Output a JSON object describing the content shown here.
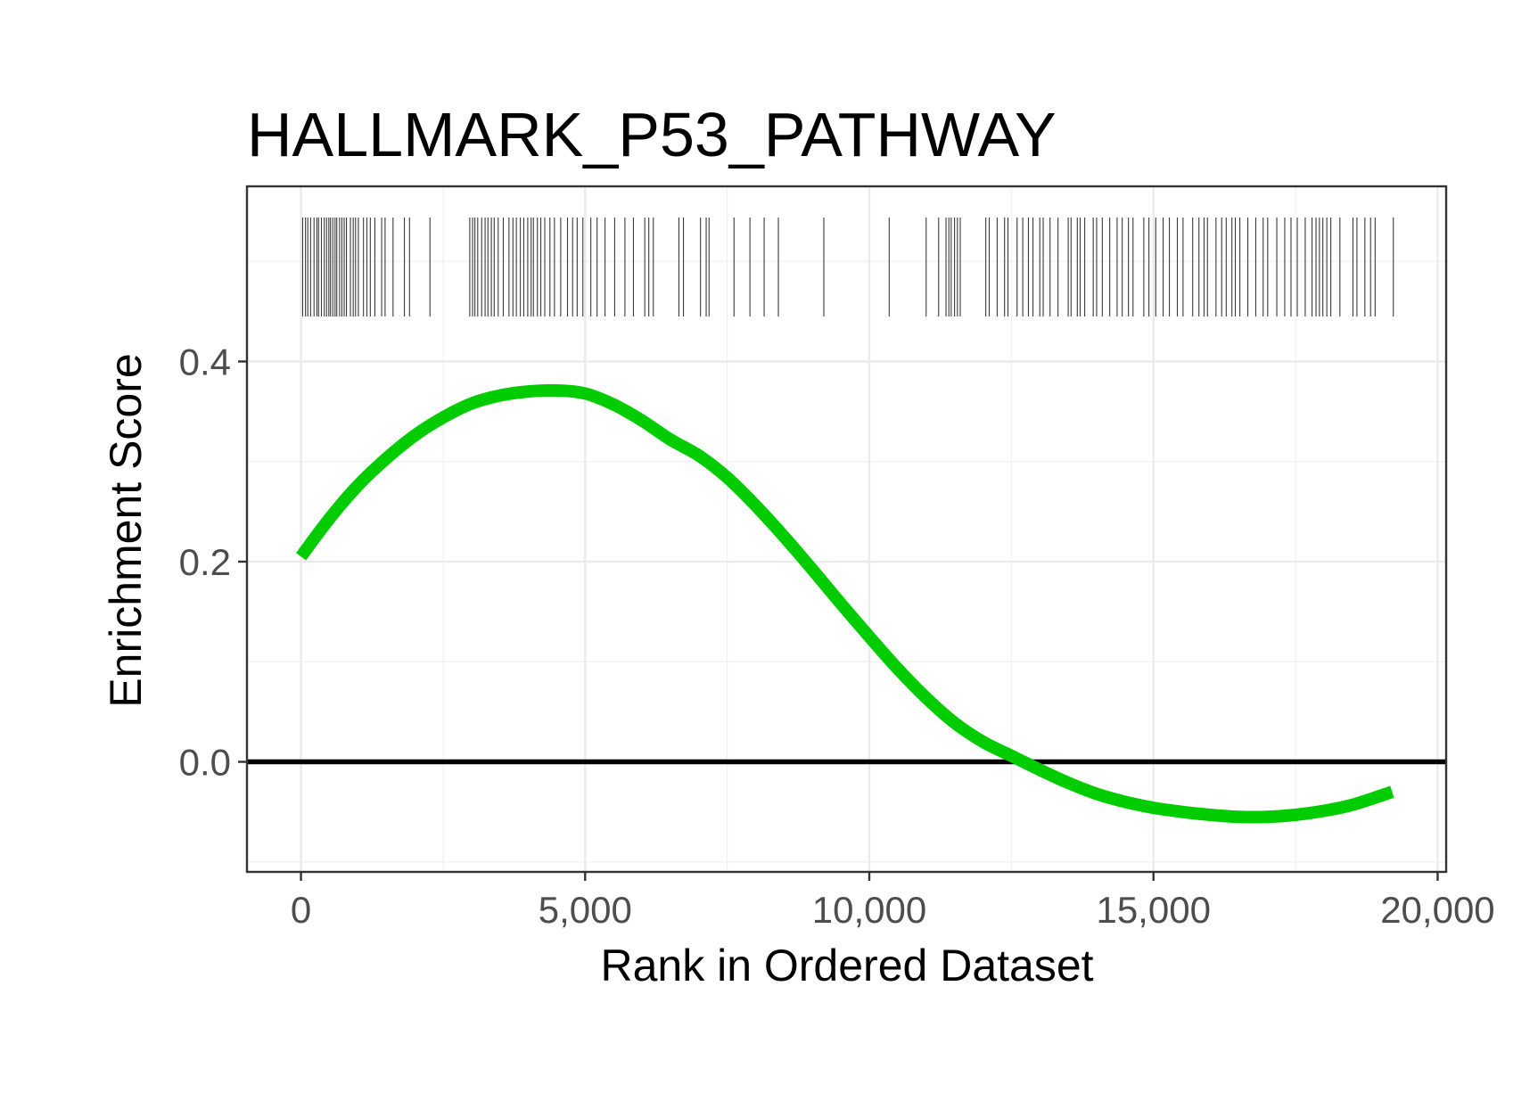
{
  "chart_data": {
    "type": "line",
    "title": "HALLMARK_P53_PATHWAY",
    "xlabel": "Rank in Ordered Dataset",
    "ylabel": "Enrichment Score",
    "xlim": [
      -950,
      20150
    ],
    "ylim": [
      -0.11,
      0.575
    ],
    "x_ticks": [
      0,
      5000,
      10000,
      15000,
      20000
    ],
    "x_tick_labels": [
      "0",
      "5,000",
      "10,000",
      "15,000",
      "20,000"
    ],
    "y_ticks": [
      0.0,
      0.2,
      0.4
    ],
    "y_tick_labels": [
      "0.0",
      "0.2",
      "0.4"
    ],
    "grid": true,
    "reference_line": {
      "y": 0,
      "color": "#000000"
    },
    "series": [
      {
        "color": "#00cc00",
        "x": [
          0,
          500,
          1000,
          1500,
          2000,
          2500,
          3000,
          3500,
          4000,
          4500,
          5000,
          5500,
          6000,
          6500,
          7000,
          7500,
          8000,
          8500,
          9000,
          9500,
          10000,
          10500,
          11000,
          11500,
          12000,
          12500,
          13000,
          13500,
          14000,
          14500,
          15000,
          15500,
          16000,
          16500,
          17000,
          17500,
          18000,
          18500,
          19200
        ],
        "values": [
          0.205,
          0.243,
          0.276,
          0.303,
          0.326,
          0.344,
          0.358,
          0.366,
          0.37,
          0.371,
          0.368,
          0.357,
          0.341,
          0.322,
          0.306,
          0.284,
          0.256,
          0.225,
          0.192,
          0.158,
          0.125,
          0.093,
          0.064,
          0.039,
          0.02,
          0.006,
          -0.008,
          -0.021,
          -0.032,
          -0.04,
          -0.046,
          -0.05,
          -0.053,
          -0.055,
          -0.055,
          -0.053,
          -0.049,
          -0.043,
          -0.03
        ]
      }
    ],
    "gene_hits": [
      30,
      80,
      120,
      170,
      230,
      280,
      310,
      360,
      410,
      450,
      490,
      520,
      560,
      600,
      630,
      680,
      720,
      760,
      800,
      870,
      920,
      960,
      1010,
      1100,
      1160,
      1220,
      1300,
      1420,
      1480,
      1620,
      1820,
      1910,
      2270,
      2970,
      3020,
      3060,
      3110,
      3180,
      3240,
      3290,
      3350,
      3400,
      3470,
      3560,
      3660,
      3730,
      3790,
      3860,
      3920,
      3990,
      4050,
      4090,
      4160,
      4220,
      4290,
      4380,
      4460,
      4570,
      4690,
      4780,
      4860,
      4960,
      5100,
      5210,
      5350,
      5520,
      5700,
      5850,
      6050,
      6120,
      6200,
      6650,
      6730,
      7030,
      7130,
      7180,
      7620,
      7900,
      8150,
      8400,
      9200,
      10350,
      11000,
      11220,
      11350,
      11400,
      11440,
      11500,
      11550,
      11600,
      12050,
      12110,
      12250,
      12380,
      12440,
      12600,
      12700,
      12800,
      12880,
      13000,
      13060,
      13180,
      13320,
      13500,
      13550,
      13660,
      13710,
      13790,
      13940,
      14000,
      14100,
      14230,
      14360,
      14450,
      14560,
      14640,
      14830,
      14920,
      15040,
      15170,
      15280,
      15420,
      15520,
      15690,
      15800,
      15890,
      15950,
      16100,
      16200,
      16280,
      16380,
      16440,
      16520,
      16660,
      16800,
      16930,
      17010,
      17170,
      17310,
      17420,
      17530,
      17670,
      17790,
      17860,
      17920,
      17980,
      18050,
      18120,
      18280,
      18510,
      18580,
      18720,
      18820,
      18900,
      19220
    ]
  }
}
